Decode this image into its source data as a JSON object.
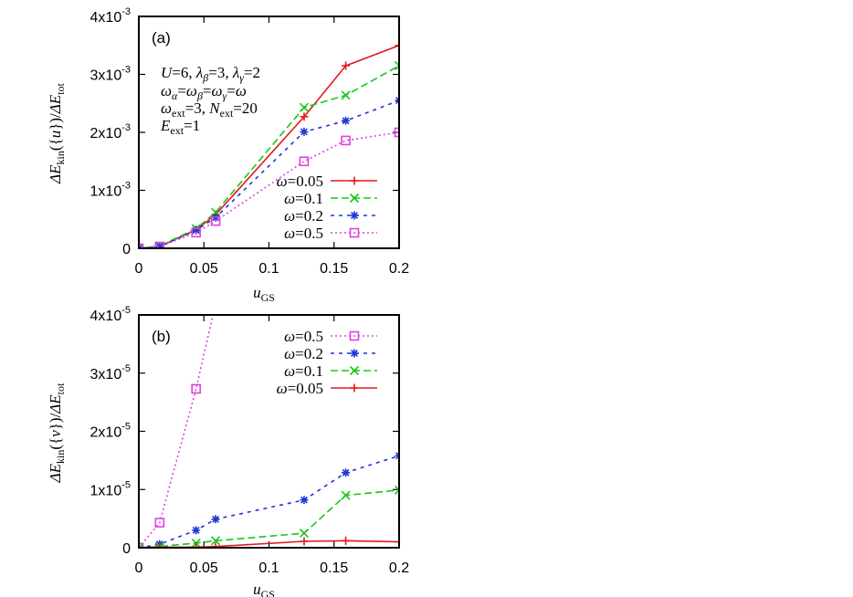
{
  "chart_data": [
    {
      "panel_label": "(a)",
      "type": "line",
      "xlabel": "u_GS",
      "ylabel": "ΔE_kin({u})/ΔE_tot",
      "xlim": [
        0,
        0.2
      ],
      "ylim": [
        0,
        0.004
      ],
      "x_ticks": [
        "0",
        "0.05",
        "0.1",
        "0.15",
        "0.2"
      ],
      "y_ticks": [
        "0",
        "1x10",
        "2x10",
        "3x10",
        "4x10"
      ],
      "y_tick_exponent": "-3",
      "annotation_lines": [
        "U=6, λβ=3, λγ=2",
        "ωα=ωβ=ωγ=ω",
        "ωext=3, Next=20",
        "Eext=1"
      ],
      "legend_position": "bottom-right",
      "series": [
        {
          "name": "ω=0.05",
          "color": "#e41a1c",
          "marker": "plus",
          "dash": "solid",
          "x": [
            0,
            0.016,
            0.044,
            0.059,
            0.127,
            0.159,
            0.2
          ],
          "y": [
            0,
            3e-05,
            0.00032,
            0.00058,
            0.00227,
            0.00315,
            0.0035
          ]
        },
        {
          "name": "ω=0.1",
          "color": "#19c819",
          "marker": "x",
          "dash": "dash",
          "x": [
            0,
            0.016,
            0.044,
            0.059,
            0.127,
            0.159,
            0.2
          ],
          "y": [
            0,
            4e-05,
            0.00034,
            0.00062,
            0.00243,
            0.00264,
            0.00315
          ]
        },
        {
          "name": "ω=0.2",
          "color": "#1f35d6",
          "marker": "star",
          "dash": "dot-coarse",
          "x": [
            0,
            0.016,
            0.044,
            0.059,
            0.127,
            0.159,
            0.2
          ],
          "y": [
            0,
            3e-05,
            0.00031,
            0.00053,
            0.00201,
            0.0022,
            0.00255
          ]
        },
        {
          "name": "ω=0.5",
          "color": "#e040e0",
          "marker": "square",
          "dash": "dot",
          "x": [
            0,
            0.016,
            0.044,
            0.059,
            0.127,
            0.159,
            0.2
          ],
          "y": [
            0,
            3e-05,
            0.00027,
            0.00047,
            0.0015,
            0.00186,
            0.002
          ]
        }
      ]
    },
    {
      "panel_label": "(b)",
      "type": "line",
      "xlabel": "u_GS",
      "ylabel": "ΔE_kin({v})/ΔE_tot",
      "xlim": [
        0,
        0.2
      ],
      "ylim": [
        0,
        4e-05
      ],
      "x_ticks": [
        "0",
        "0.05",
        "0.1",
        "0.15",
        "0.2"
      ],
      "y_ticks": [
        "0",
        "1x10",
        "2x10",
        "3x10",
        "4x10"
      ],
      "y_tick_exponent": "-5",
      "legend_position": "top-right",
      "series": [
        {
          "name": "ω=0.5",
          "color": "#e040e0",
          "marker": "square",
          "dash": "dot",
          "x": [
            0,
            0.016,
            0.044,
            0.059
          ],
          "y": [
            0,
            4.3e-06,
            2.73e-05,
            4.2e-05
          ]
        },
        {
          "name": "ω=0.2",
          "color": "#1f35d6",
          "marker": "star",
          "dash": "dot-coarse",
          "x": [
            0,
            0.016,
            0.044,
            0.059,
            0.127,
            0.159,
            0.2
          ],
          "y": [
            0,
            6e-07,
            3e-06,
            4.9e-06,
            8.2e-06,
            1.29e-05,
            1.58e-05
          ]
        },
        {
          "name": "ω=0.1",
          "color": "#19c819",
          "marker": "x",
          "dash": "dash",
          "x": [
            0,
            0.016,
            0.044,
            0.059,
            0.127,
            0.159,
            0.2
          ],
          "y": [
            0,
            2e-07,
            8e-07,
            1.2e-06,
            2.5e-06,
            9e-06,
            9.9e-06
          ]
        },
        {
          "name": "ω=0.05",
          "color": "#e41a1c",
          "marker": "plus",
          "dash": "solid",
          "x": [
            0,
            0.016,
            0.044,
            0.059,
            0.127,
            0.159,
            0.2
          ],
          "y": [
            0,
            1e-07,
            1e-07,
            2e-07,
            1.1e-06,
            1.2e-06,
            1e-06
          ]
        }
      ]
    }
  ]
}
